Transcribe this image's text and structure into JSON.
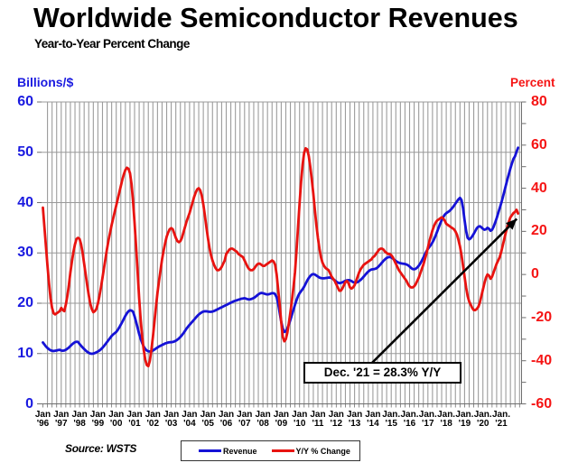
{
  "header": {
    "title": "Worldwide Semiconductor Revenues",
    "subtitle": "Year-to-Year Percent Change"
  },
  "footer": {
    "source": "Source: WSTS"
  },
  "annotation": {
    "text": "Dec. '21 = 28.3% Y/Y"
  },
  "legend": {
    "items": [
      {
        "label": "Revenue",
        "color": "#1512d6"
      },
      {
        "label": "Y/Y % Change",
        "color": "#e81310"
      }
    ]
  },
  "colors": {
    "revenue_line": "#1512d6",
    "yoy_line": "#e81310",
    "left_axis_text": "#1a1ae0",
    "right_axis_text": "#f51414",
    "grid_horizontal": "#999999",
    "grid_vertical": "#9c9c9c",
    "axis_line": "#6e6e6e",
    "title_text": "#000000"
  },
  "chart_data": {
    "type": "line",
    "title": "Worldwide Semiconductor Revenues",
    "subtitle": "Year-to-Year Percent Change",
    "x_start": "1996-01",
    "x_end": "2021-12",
    "frequency": "monthly",
    "x_tick_years": [
      "'96",
      "'97",
      "'98",
      "'99",
      "'00",
      "'01",
      "'02",
      "'03",
      "'04",
      "'05",
      "'06",
      "'07",
      "'08",
      "'09",
      "'10",
      "'11",
      "'12",
      "'13",
      "'14",
      "'15",
      "'16",
      "'17",
      "'18",
      "'19",
      "'20",
      "'21"
    ],
    "x_tick_month_label": "Jan",
    "x_tick_month_label_dotted_from_year": 2015,
    "left_axis": {
      "title": "Billions/$",
      "min": 0,
      "max": 60,
      "tick_step": 10
    },
    "right_axis": {
      "title": "Percent",
      "min": -60,
      "max": 80,
      "tick_step": 20,
      "minor_tick_step": 10
    },
    "grid": {
      "horizontal": "left-axis major gridlines",
      "vertical": "quarterly gridlines"
    },
    "legend_position": "bottom-center",
    "annotation": {
      "text": "Dec. '21 = 28.3% Y/Y",
      "points_to": "last Y/Y % Change point (Dec 2021)"
    },
    "series": [
      {
        "name": "Revenue",
        "axis": "left",
        "unit": "US$B",
        "color": "#1512d6",
        "values": [
          12.2,
          11.8,
          11.4,
          11.1,
          10.85,
          10.65,
          10.55,
          10.5,
          10.55,
          10.6,
          10.7,
          10.75,
          10.6,
          10.55,
          10.6,
          10.75,
          10.95,
          11.2,
          11.5,
          11.8,
          12.05,
          12.25,
          12.35,
          12.3,
          11.9,
          11.55,
          11.2,
          10.9,
          10.6,
          10.35,
          10.15,
          10.0,
          9.95,
          10.0,
          10.1,
          10.25,
          10.4,
          10.6,
          10.85,
          11.15,
          11.5,
          11.9,
          12.3,
          12.7,
          13.1,
          13.5,
          13.8,
          14.05,
          14.3,
          14.7,
          15.2,
          15.75,
          16.3,
          16.9,
          17.5,
          18.0,
          18.4,
          18.6,
          18.55,
          18.3,
          17.4,
          16.3,
          15.1,
          13.9,
          12.9,
          12.1,
          11.4,
          10.9,
          10.6,
          10.45,
          10.4,
          10.45,
          10.6,
          10.8,
          11.0,
          11.2,
          11.4,
          11.55,
          11.7,
          11.85,
          12.0,
          12.1,
          12.2,
          12.25,
          12.25,
          12.3,
          12.4,
          12.55,
          12.75,
          13.0,
          13.3,
          13.65,
          14.05,
          14.5,
          14.95,
          15.35,
          15.7,
          16.05,
          16.4,
          16.75,
          17.1,
          17.45,
          17.75,
          18.0,
          18.2,
          18.35,
          18.4,
          18.4,
          18.35,
          18.3,
          18.3,
          18.35,
          18.45,
          18.6,
          18.75,
          18.9,
          19.05,
          19.2,
          19.35,
          19.5,
          19.65,
          19.8,
          19.95,
          20.1,
          20.25,
          20.4,
          20.5,
          20.6,
          20.7,
          20.8,
          20.9,
          20.95,
          21.0,
          20.9,
          20.8,
          20.75,
          20.8,
          20.9,
          21.05,
          21.25,
          21.5,
          21.75,
          21.95,
          22.05,
          22.0,
          21.9,
          21.8,
          21.75,
          21.8,
          21.9,
          22.0,
          22.0,
          21.8,
          21.2,
          19.9,
          18.1,
          16.3,
          15.0,
          14.3,
          14.4,
          15.0,
          15.8,
          16.7,
          17.7,
          18.7,
          19.7,
          20.6,
          21.4,
          22.0,
          22.4,
          22.8,
          23.3,
          23.9,
          24.5,
          25.0,
          25.4,
          25.7,
          25.8,
          25.7,
          25.5,
          25.3,
          25.1,
          25.0,
          24.95,
          24.95,
          25.0,
          25.05,
          25.1,
          25.1,
          25.0,
          24.8,
          24.55,
          24.3,
          24.1,
          24.0,
          24.05,
          24.15,
          24.3,
          24.45,
          24.55,
          24.6,
          24.55,
          24.4,
          24.2,
          24.1,
          24.1,
          24.2,
          24.4,
          24.65,
          24.95,
          25.3,
          25.65,
          26.0,
          26.3,
          26.55,
          26.7,
          26.75,
          26.8,
          26.9,
          27.1,
          27.4,
          27.75,
          28.1,
          28.45,
          28.75,
          29.0,
          29.15,
          29.2,
          29.1,
          28.9,
          28.65,
          28.4,
          28.2,
          28.05,
          27.95,
          27.9,
          27.85,
          27.8,
          27.7,
          27.55,
          27.3,
          27.0,
          26.8,
          26.75,
          26.85,
          27.1,
          27.45,
          27.9,
          28.45,
          29.05,
          29.7,
          30.3,
          30.8,
          31.2,
          31.6,
          32.1,
          32.7,
          33.4,
          34.2,
          35.0,
          35.8,
          36.5,
          37.1,
          37.6,
          37.9,
          38.1,
          38.3,
          38.6,
          38.95,
          39.35,
          39.8,
          40.25,
          40.65,
          40.95,
          40.5,
          38.9,
          36.5,
          34.4,
          33.0,
          32.7,
          32.9,
          33.3,
          33.8,
          34.35,
          34.9,
          35.2,
          35.3,
          35.1,
          34.8,
          34.6,
          34.7,
          35.0,
          34.8,
          34.4,
          34.6,
          35.2,
          36.0,
          36.9,
          37.9,
          38.9,
          39.9,
          41.0,
          42.2,
          43.4,
          44.6,
          45.7,
          46.8,
          47.8,
          48.7,
          49.2,
          50.1,
          50.9
        ]
      },
      {
        "name": "Y/Y % Change",
        "axis": "right",
        "unit": "%",
        "color": "#e81310",
        "values": [
          31,
          22,
          13,
          4,
          -4,
          -11,
          -15.5,
          -18,
          -18.5,
          -18,
          -17.5,
          -17,
          -15.5,
          -16.5,
          -17,
          -14,
          -10,
          -5,
          1,
          6,
          10.5,
          14,
          16.5,
          17,
          16.5,
          14,
          10,
          5,
          0,
          -5,
          -9.5,
          -13.5,
          -16,
          -17.5,
          -17,
          -16,
          -13.5,
          -10,
          -6,
          -1.5,
          3,
          7.5,
          12,
          16,
          19.5,
          23,
          26,
          29,
          32,
          35,
          38,
          41,
          44,
          46.5,
          48.5,
          49.5,
          49,
          47,
          42,
          34,
          24,
          13,
          1,
          -11,
          -21,
          -29,
          -35,
          -39.5,
          -42,
          -42.5,
          -40,
          -35,
          -29,
          -22,
          -15,
          -8.5,
          -3,
          2,
          7,
          11,
          14.5,
          17.5,
          19.5,
          21,
          21.5,
          21,
          19,
          17,
          15.5,
          15,
          15.5,
          17,
          19.5,
          22,
          24.5,
          26.5,
          28.5,
          31,
          33.5,
          36,
          38,
          39.5,
          40,
          39,
          36.5,
          32.5,
          27.5,
          22,
          17,
          12.5,
          9,
          6.5,
          4.5,
          3,
          2,
          2,
          2.5,
          3.5,
          5,
          6.5,
          9.5,
          10.5,
          11.5,
          12,
          12,
          11.5,
          11,
          10.5,
          9.5,
          9,
          8.5,
          8,
          6.5,
          5,
          3.5,
          2.5,
          2,
          2,
          2.5,
          3.5,
          4.5,
          5,
          5,
          4.5,
          4,
          4,
          4.5,
          5,
          5.5,
          6,
          6.5,
          6,
          4.5,
          0,
          -7,
          -14,
          -22,
          -29,
          -31,
          -30,
          -27,
          -22.5,
          -17.5,
          -12,
          -6,
          1,
          11,
          22,
          33,
          43,
          51,
          56.5,
          58.5,
          58,
          55,
          50,
          44,
          37.5,
          30,
          23,
          17,
          12,
          8,
          5.5,
          4,
          3,
          2.5,
          2,
          0.5,
          -1,
          -2,
          -3,
          -4.5,
          -6,
          -7.5,
          -7.5,
          -6.5,
          -5,
          -3.5,
          -3,
          -4,
          -6,
          -6.5,
          -6,
          -5,
          -3,
          -1,
          1,
          2.5,
          3.5,
          4.5,
          5,
          5.5,
          6,
          6.5,
          7,
          8,
          8.5,
          9.5,
          10.5,
          11.5,
          12,
          12,
          11.5,
          10.5,
          10,
          9.5,
          9.5,
          9,
          8,
          6.5,
          5,
          3.5,
          2,
          1,
          0,
          -1,
          -2,
          -3,
          -4.5,
          -5.5,
          -6,
          -6,
          -5.5,
          -4.5,
          -3,
          -1.5,
          0.5,
          2.5,
          4.5,
          7,
          9.5,
          12.5,
          15.5,
          18,
          20.5,
          22.5,
          24,
          25,
          25.5,
          26,
          26.5,
          26,
          25,
          23.5,
          23,
          22.5,
          22,
          21.5,
          21,
          20,
          18.5,
          16,
          13,
          9,
          4,
          -1,
          -6,
          -10,
          -12.5,
          -14,
          -15.5,
          -16.5,
          -16.5,
          -16,
          -15,
          -13,
          -10,
          -7,
          -4,
          -1.5,
          0,
          -0.5,
          -2,
          -1,
          1,
          3,
          5,
          6.5,
          8,
          10.5,
          13.5,
          16.5,
          19.5,
          22,
          24.5,
          26.5,
          27.5,
          28.5,
          29,
          30,
          28.3
        ]
      }
    ]
  }
}
